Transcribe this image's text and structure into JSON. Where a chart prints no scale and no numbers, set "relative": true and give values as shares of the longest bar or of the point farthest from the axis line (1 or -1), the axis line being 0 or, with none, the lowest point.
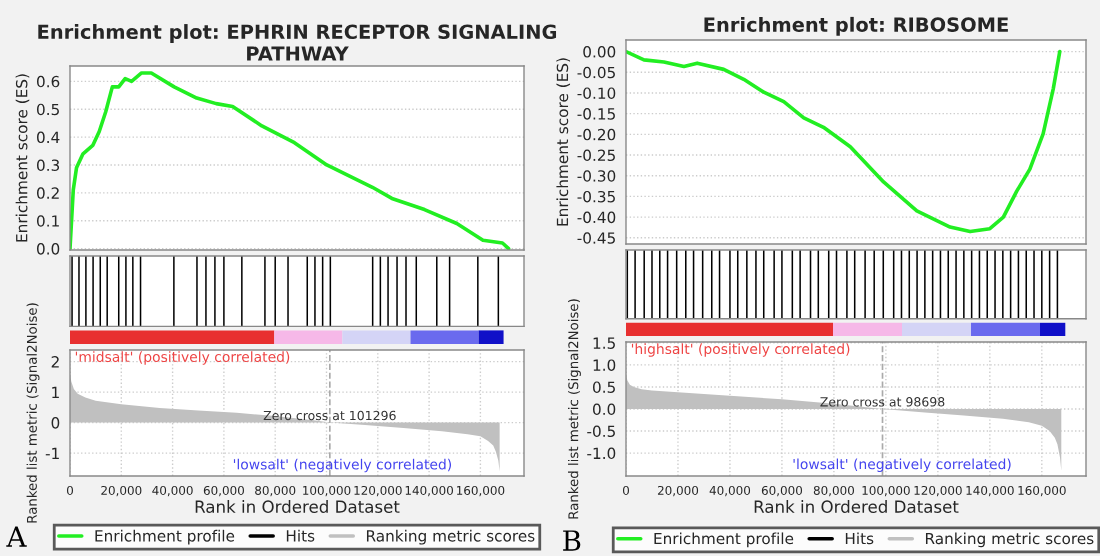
{
  "chart_data": [
    {
      "type": "line",
      "title": "Enrichment plot: EPHRIN RECEPTOR SIGNALING PATHWAY",
      "ylabel": "Enrichment score (ES)",
      "xlim": [
        0,
        177000
      ],
      "ylim": [
        -0.005,
        0.655
      ],
      "yticks": [
        {
          "value": 0,
          "label": "0.0"
        },
        0.1,
        0.2,
        0.3,
        0.4,
        0.5,
        0.6
      ],
      "tick_labels": "y",
      "grid": true,
      "series": [
        {
          "name": "Enrichment profile",
          "color": "#22ee22",
          "x": [
            0,
            1270,
            2540,
            5070,
            8870,
            11400,
            13900,
            16500,
            19000,
            21500,
            24000,
            27900,
            31700,
            40600,
            49400,
            57000,
            63400,
            74800,
            87500,
            100100,
            117900,
            125500,
            138200,
            150800,
            161000,
            168600,
            171000
          ],
          "values": [
            0,
            0.21,
            0.29,
            0.34,
            0.37,
            0.42,
            0.49,
            0.58,
            0.58,
            0.61,
            0.6,
            0.63,
            0.63,
            0.58,
            0.54,
            0.52,
            0.51,
            0.44,
            0.38,
            0.3,
            0.22,
            0.18,
            0.14,
            0.09,
            0.03,
            0.02,
            0
          ]
        }
      ]
    },
    {
      "type": "bar",
      "relative": true,
      "xlim": [
        0,
        177000
      ],
      "tick_labels": false,
      "series": [
        {
          "name": "Hits",
          "color": "#000000",
          "x": [
            800,
            3500,
            6200,
            9000,
            11800,
            14500,
            19000,
            21800,
            24500,
            27500,
            40500,
            49500,
            53000,
            56500,
            60000,
            67000,
            76000,
            80000,
            85000,
            92500,
            95500,
            98500,
            101500,
            118000,
            121000,
            124000,
            127500,
            131000,
            135000,
            143000,
            148000,
            159000,
            167000
          ],
          "values": [
            1,
            1,
            1,
            1,
            1,
            1,
            1,
            1,
            1,
            1,
            1,
            1,
            1,
            1,
            1,
            1,
            1,
            1,
            1,
            1,
            1,
            1,
            1,
            1,
            1,
            1,
            1,
            1,
            1,
            1,
            1,
            1,
            1
          ]
        }
      ]
    },
    {
      "type": "area",
      "ylabel": "Ranked list metric (Signal2Noise)",
      "xlabel": "Rank in Ordered Dataset",
      "xlim": [
        0,
        177000
      ],
      "xticks": [
        {
          "value": 0,
          "label": "0"
        },
        {
          "value": 20000,
          "label": "20,000"
        },
        {
          "value": 40000,
          "label": "40,000"
        },
        {
          "value": 60000,
          "label": "60,000"
        },
        {
          "value": 80000,
          "label": "80,000"
        },
        {
          "value": 100000,
          "label": "100,000"
        },
        {
          "value": 120000,
          "label": "120,000"
        },
        {
          "value": 140000,
          "label": "140,000"
        },
        {
          "value": 160000,
          "label": "160,000"
        }
      ],
      "ylim": [
        -1.75,
        2.38
      ],
      "yticks": [
        -1,
        0,
        1,
        2
      ],
      "grid": true,
      "legend": "bottom",
      "ref_lines": [
        {
          "axis": "x",
          "value": 101296,
          "label": "Zero cross at 101296",
          "line_style": "dashed",
          "color": "#aaaaaa"
        }
      ],
      "annotations": [
        "'midsalt' (positively correlated)",
        "'lowsalt' (negatively correlated)",
        "A"
      ],
      "series": [
        {
          "name": "Ranking metric scores",
          "color": "#c0c0c0",
          "x": [
            0,
            500,
            1500,
            3000,
            6000,
            10000,
            20000,
            35000,
            50000,
            65000,
            80000,
            95000,
            101296,
            115000,
            130000,
            145000,
            155000,
            160000,
            163000,
            165000,
            166000,
            167000,
            167500
          ],
          "values": [
            1.6,
            1.35,
            1.1,
            0.95,
            0.82,
            0.72,
            0.6,
            0.48,
            0.4,
            0.32,
            0.22,
            0.08,
            0,
            -0.08,
            -0.18,
            -0.28,
            -0.38,
            -0.45,
            -0.6,
            -0.75,
            -0.95,
            -1.25,
            -1.6
          ]
        }
      ]
    },
    {
      "type": "line",
      "title": "Enrichment plot: RIBOSOME",
      "ylabel": "Enrichment score (ES)",
      "xlim": [
        0,
        177000
      ],
      "ylim": [
        -0.465,
        0.028
      ],
      "yticks": [
        {
          "value": 0,
          "label": "0.00"
        },
        {
          "value": -0.05,
          "label": "-0.05"
        },
        {
          "value": -0.1,
          "label": "-0.10"
        },
        {
          "value": -0.15,
          "label": "-0.15"
        },
        {
          "value": -0.2,
          "label": "-0.20"
        },
        {
          "value": -0.25,
          "label": "-0.25"
        },
        {
          "value": -0.3,
          "label": "-0.30"
        },
        {
          "value": -0.35,
          "label": "-0.35"
        },
        {
          "value": -0.4,
          "label": "-0.40"
        },
        {
          "value": -0.45,
          "label": "-0.45"
        }
      ],
      "tick_labels": "y",
      "grid": true,
      "series": [
        {
          "name": "Enrichment profile",
          "color": "#22ee22",
          "x": [
            0,
            6900,
            14600,
            22300,
            27400,
            37600,
            45300,
            53000,
            60700,
            68400,
            76000,
            86300,
            99100,
            111900,
            124700,
            132400,
            140000,
            145200,
            150300,
            155400,
            160500,
            164400,
            166900
          ],
          "values": [
            0,
            -0.02,
            -0.025,
            -0.036,
            -0.028,
            -0.043,
            -0.067,
            -0.098,
            -0.121,
            -0.16,
            -0.183,
            -0.23,
            -0.315,
            -0.385,
            -0.424,
            -0.435,
            -0.428,
            -0.4,
            -0.338,
            -0.284,
            -0.199,
            -0.09,
            0
          ]
        }
      ]
    },
    {
      "type": "bar",
      "relative": true,
      "xlim": [
        0,
        177000
      ],
      "tick_labels": false,
      "series": [
        {
          "name": "Hits",
          "color": "#000000",
          "x": [
            500,
            3500,
            7000,
            10000,
            13000,
            16000,
            19500,
            23000,
            26000,
            29500,
            33000,
            36000,
            40000,
            43000,
            46500,
            50000,
            53000,
            57000,
            60000,
            64000,
            67000,
            71000,
            74000,
            78000,
            81000,
            85000,
            88000,
            92000,
            95500,
            99000,
            103000,
            106000,
            109000,
            112000,
            115000,
            118000,
            121000,
            124000,
            127000,
            130000,
            133000,
            136000,
            139000,
            142000,
            145000,
            148000,
            151000,
            154000,
            157000,
            160000,
            163000,
            166000
          ],
          "values": [
            1,
            1,
            1,
            1,
            1,
            1,
            1,
            1,
            1,
            1,
            1,
            1,
            1,
            1,
            1,
            1,
            1,
            1,
            1,
            1,
            1,
            1,
            1,
            1,
            1,
            1,
            1,
            1,
            1,
            1,
            1,
            1,
            1,
            1,
            1,
            1,
            1,
            1,
            1,
            1,
            1,
            1,
            1,
            1,
            1,
            1,
            1,
            1,
            1,
            1,
            1,
            1
          ]
        }
      ]
    },
    {
      "type": "area",
      "ylabel": "Ranked list metric (Signal2Noise)",
      "xlabel": "Rank in Ordered Dataset",
      "xlim": [
        0,
        177000
      ],
      "xticks": [
        {
          "value": 0,
          "label": "0"
        },
        {
          "value": 20000,
          "label": "20,000"
        },
        {
          "value": 40000,
          "label": "40,000"
        },
        {
          "value": 60000,
          "label": "60,000"
        },
        {
          "value": 80000,
          "label": "80,000"
        },
        {
          "value": 100000,
          "label": "100,000"
        },
        {
          "value": 120000,
          "label": "120,000"
        },
        {
          "value": 140000,
          "label": "140,000"
        },
        {
          "value": 160000,
          "label": "160,000"
        }
      ],
      "ylim": [
        -1.52,
        1.52
      ],
      "yticks": [
        {
          "value": -1,
          "label": "-1.0"
        },
        {
          "value": -0.5,
          "label": "-0.5"
        },
        {
          "value": 0,
          "label": "0.0"
        },
        0.5,
        {
          "value": 1,
          "label": "1.0"
        },
        1.5
      ],
      "grid": true,
      "legend": "bottom",
      "ref_lines": [
        {
          "axis": "x",
          "value": 98698,
          "label": "Zero cross at 98698",
          "line_style": "dashed",
          "color": "#aaaaaa"
        }
      ],
      "annotations": [
        "'highsalt' (positively correlated)",
        "'lowsalt' (negatively correlated)",
        "B"
      ],
      "series": [
        {
          "name": "Ranking metric scores",
          "color": "#c0c0c0",
          "x": [
            0,
            500,
            1500,
            3000,
            6000,
            10000,
            20000,
            40000,
            60000,
            80000,
            98698,
            115000,
            130000,
            145000,
            155000,
            160000,
            163000,
            165000,
            166000,
            167000,
            167500
          ],
          "values": [
            0.8,
            0.65,
            0.55,
            0.5,
            0.45,
            0.42,
            0.38,
            0.3,
            0.22,
            0.12,
            0,
            -0.08,
            -0.15,
            -0.22,
            -0.3,
            -0.38,
            -0.5,
            -0.65,
            -0.8,
            -1.1,
            -1.4
          ]
        }
      ]
    }
  ]
}
